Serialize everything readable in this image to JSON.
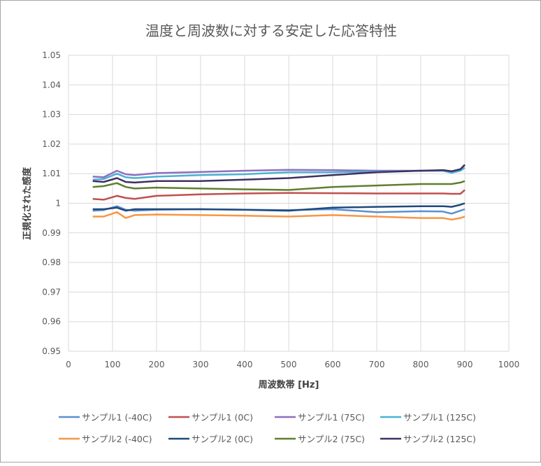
{
  "chart_data": {
    "type": "line",
    "title": "温度と周波数に対する安定した応答特性",
    "xlabel": "周波数帯 [Hz]",
    "ylabel": "正規化された感度",
    "xlim": [
      0,
      1000
    ],
    "ylim": [
      0.95,
      1.05
    ],
    "xticks": [
      "0",
      "100",
      "200",
      "300",
      "400",
      "500",
      "600",
      "700",
      "800",
      "900",
      "1000"
    ],
    "yticks": [
      "0.95",
      "0.96",
      "0.97",
      "0.98",
      "0.99",
      "1",
      "1.01",
      "1.02",
      "1.03",
      "1.04",
      "1.05"
    ],
    "grid": true,
    "legend": "bottom",
    "x": [
      55,
      80,
      110,
      130,
      150,
      200,
      300,
      400,
      500,
      600,
      700,
      800,
      850,
      870,
      890,
      900
    ],
    "series": [
      {
        "name": "サンプル1 (-40C)",
        "color": "#5b8fd1",
        "values": [
          0.9975,
          0.9977,
          0.999,
          0.9978,
          0.9975,
          0.9978,
          0.998,
          0.9978,
          0.9977,
          0.998,
          0.997,
          0.9973,
          0.9972,
          0.9965,
          0.9975,
          0.998
        ]
      },
      {
        "name": "サンプル1 (0C)",
        "color": "#c0504d",
        "values": [
          1.0015,
          1.0012,
          1.0025,
          1.0018,
          1.0015,
          1.0025,
          1.003,
          1.0033,
          1.0035,
          1.0034,
          1.0033,
          1.0033,
          1.0033,
          1.0032,
          1.0032,
          1.0045
        ]
      },
      {
        "name": "サンプル1 (75C)",
        "color": "#8e6fbf",
        "values": [
          1.009,
          1.0088,
          1.011,
          1.0098,
          1.0095,
          1.0102,
          1.0106,
          1.011,
          1.0113,
          1.0112,
          1.011,
          1.011,
          1.011,
          1.0108,
          1.0115,
          1.013
        ]
      },
      {
        "name": "サンプル1 (125C)",
        "color": "#4bb2d3",
        "values": [
          1.008,
          1.0082,
          1.01,
          1.0088,
          1.0085,
          1.009,
          1.0095,
          1.0098,
          1.0105,
          1.0105,
          1.0107,
          1.011,
          1.011,
          1.0103,
          1.011,
          1.012
        ]
      },
      {
        "name": "サンプル2 (-40C)",
        "color": "#f79646",
        "values": [
          0.9955,
          0.9955,
          0.997,
          0.995,
          0.996,
          0.9962,
          0.996,
          0.9958,
          0.9955,
          0.996,
          0.9955,
          0.995,
          0.995,
          0.9945,
          0.995,
          0.9955
        ]
      },
      {
        "name": "サンプル2 (0C)",
        "color": "#1f497d",
        "values": [
          0.998,
          0.998,
          0.9985,
          0.9975,
          0.998,
          0.998,
          0.998,
          0.9978,
          0.9975,
          0.9985,
          0.9988,
          0.999,
          0.999,
          0.9988,
          0.9995,
          1.0
        ]
      },
      {
        "name": "サンプル2 (75C)",
        "color": "#5f7f2e",
        "values": [
          1.0055,
          1.0058,
          1.0068,
          1.0055,
          1.005,
          1.0053,
          1.005,
          1.0047,
          1.0045,
          1.0055,
          1.006,
          1.0065,
          1.0065,
          1.0065,
          1.007,
          1.0075
        ]
      },
      {
        "name": "サンプル2 (125C)",
        "color": "#403060",
        "values": [
          1.0075,
          1.0072,
          1.0085,
          1.0072,
          1.007,
          1.0075,
          1.0075,
          1.008,
          1.0085,
          1.0095,
          1.0105,
          1.011,
          1.0112,
          1.0108,
          1.0115,
          1.013
        ]
      }
    ]
  }
}
